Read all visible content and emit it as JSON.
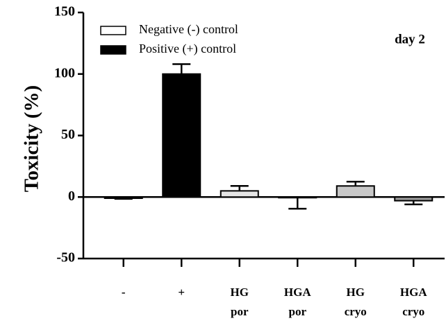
{
  "chart_data": {
    "type": "bar",
    "ylabel": "Toxicity (%)",
    "annotation": "day 2",
    "categories": [
      [
        "-"
      ],
      [
        "+"
      ],
      [
        "HG",
        "por"
      ],
      [
        "HGA",
        "por"
      ],
      [
        "HG",
        "cryo"
      ],
      [
        "HGA",
        "cryo"
      ]
    ],
    "values": [
      -1,
      100,
      5,
      -0.5,
      9,
      -3
    ],
    "errors": [
      0.5,
      8,
      4,
      9,
      3.5,
      3
    ],
    "colors": [
      "#ffffff",
      "#000000",
      "#e4e4e4",
      "#e4e4e4",
      "#c8c8c8",
      "#9a9a9a"
    ],
    "legend": [
      {
        "name": "Negative (-) control",
        "color": "#ffffff"
      },
      {
        "name": "Positive (+) control",
        "color": "#000000"
      }
    ],
    "ylim": [
      -50,
      150
    ],
    "yticks": [
      -50,
      0,
      50,
      100,
      150
    ]
  }
}
